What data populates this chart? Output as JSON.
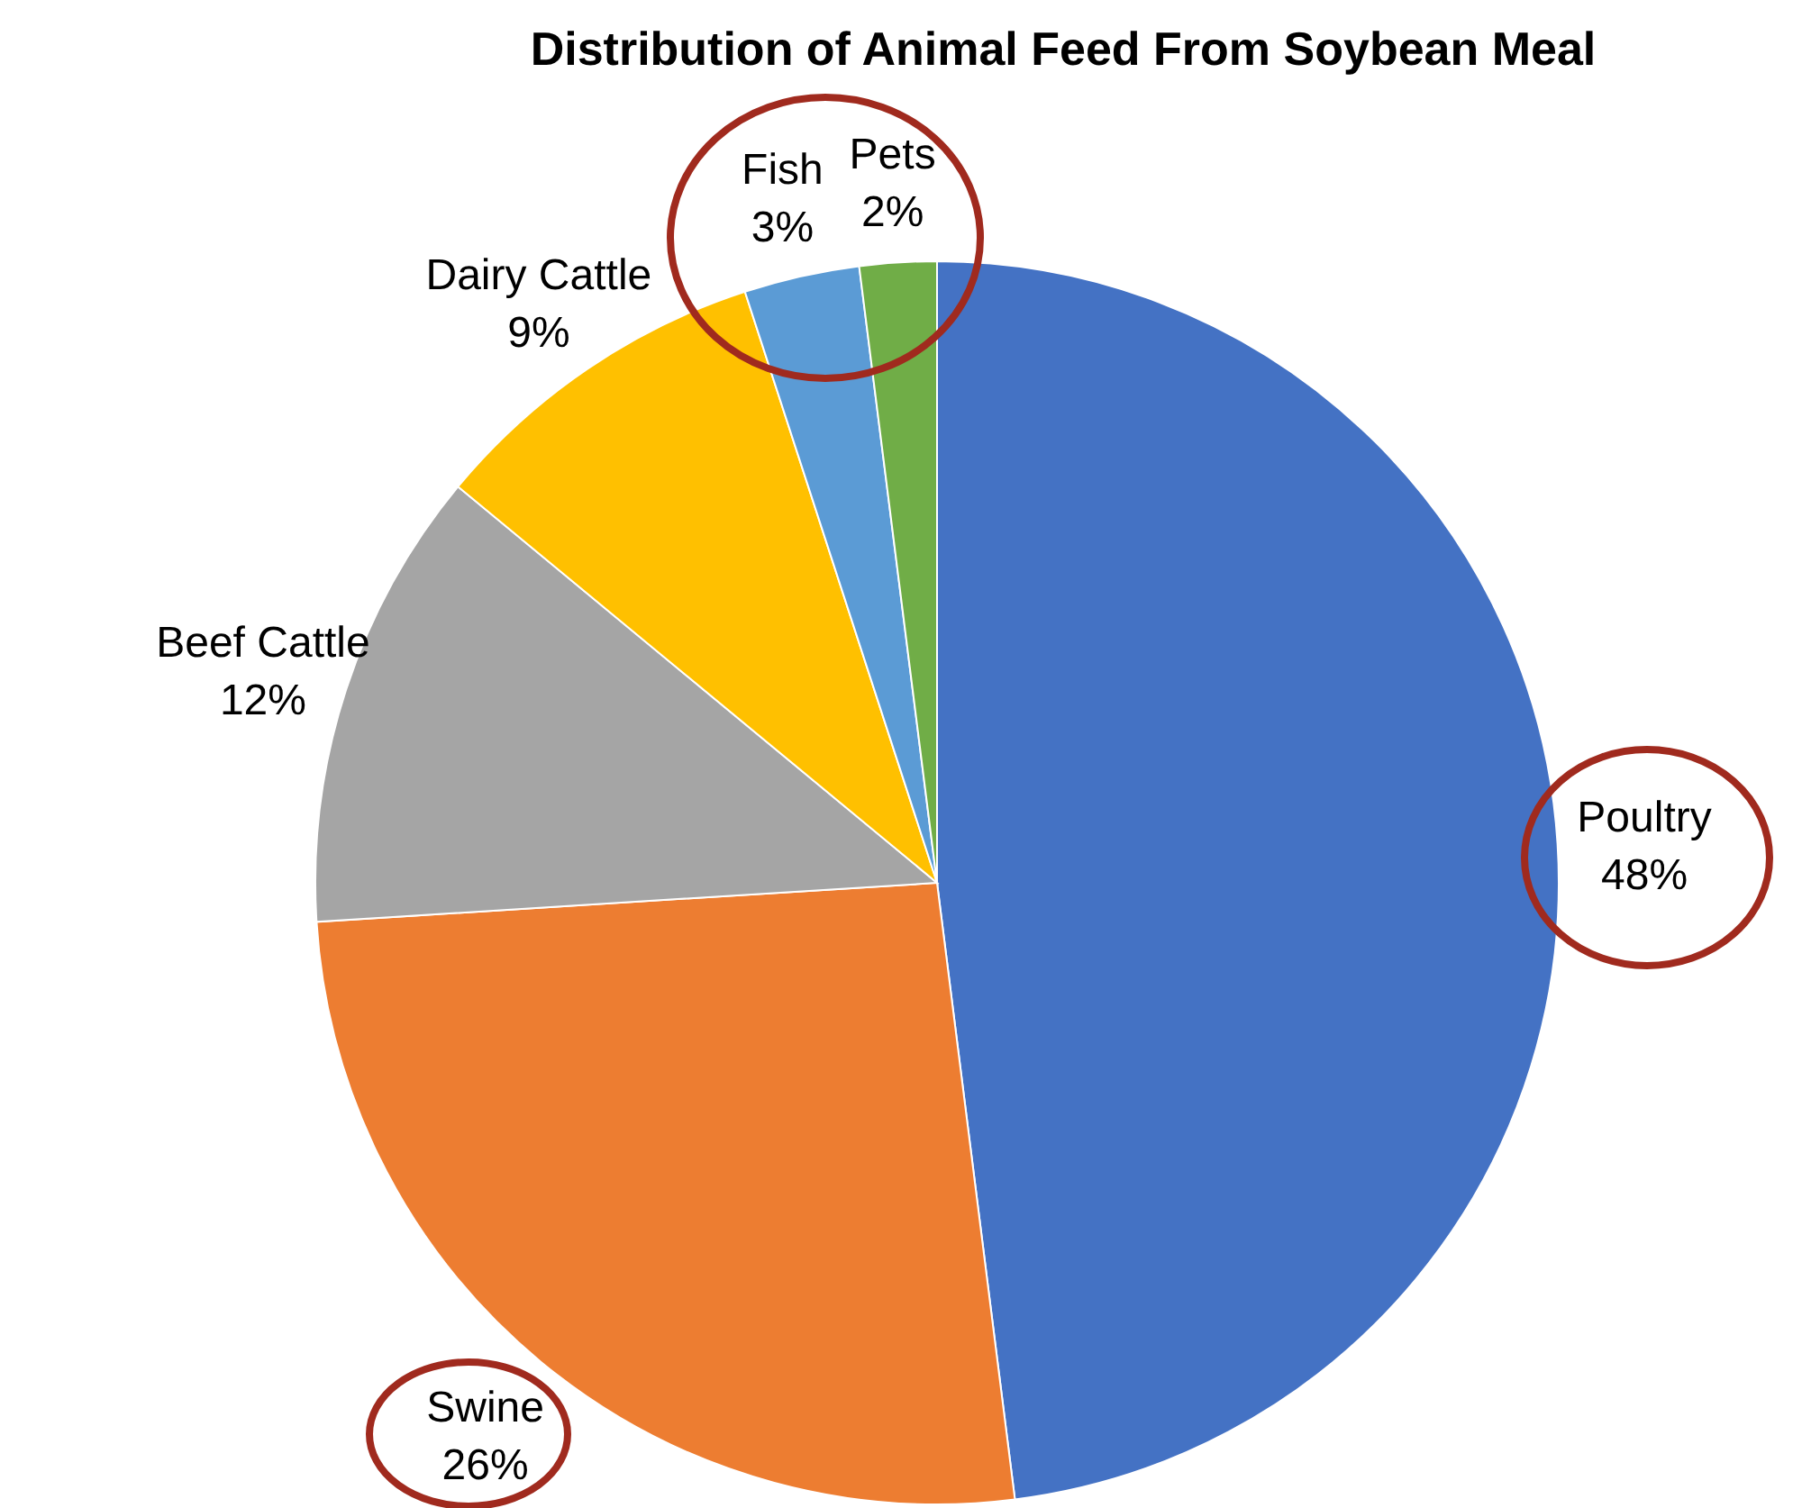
{
  "chart_data": {
    "type": "pie",
    "title": "Distribution of Animal Feed From Soybean Meal",
    "categories": [
      "Poultry",
      "Swine",
      "Beef Cattle",
      "Dairy Cattle",
      "Fish",
      "Pets"
    ],
    "values": [
      48,
      26,
      12,
      9,
      3,
      2
    ],
    "value_labels": [
      "48%",
      "26%",
      "12%",
      "9%",
      "3%",
      "2%"
    ],
    "colors": [
      "#4472c4",
      "#ed7d31",
      "#a5a5a5",
      "#ffc000",
      "#5b9bd5",
      "#70ad47"
    ]
  }
}
